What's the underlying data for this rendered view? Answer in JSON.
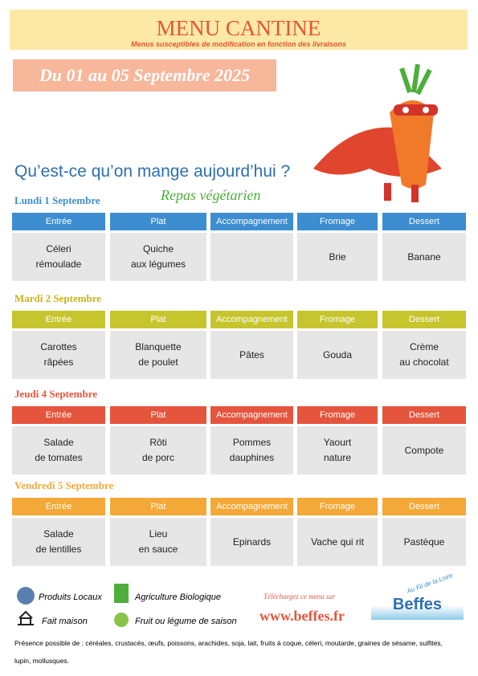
{
  "header": {
    "title": "MENU CANTINE",
    "subtitle": "Menus susceptibles de modification en fonction des livraisons",
    "dates": "Du 01 au 05 Septembre 2025"
  },
  "question": "Qu’est-ce qu’on mange aujourd’hui ?",
  "note": "Repas végétarien",
  "columns": [
    "Entrée",
    "Plat",
    "Accompagnement",
    "Fromage",
    "Dessert"
  ],
  "days": [
    {
      "label": "Lundi 1 Septembre",
      "color": "#3d8ed0",
      "label_color": "#3d8ed0",
      "cells": [
        "Céleri\nrémoulade",
        "Quiche\naux légumes",
        "",
        "Brie",
        "Banane"
      ]
    },
    {
      "label": "Mardi 2 Septembre",
      "color": "#c6c52e",
      "label_color": "#c9b21e",
      "cells": [
        "Carottes\nrâpées",
        "Blanquette\nde poulet",
        "Pâtes",
        "Gouda",
        "Crème\nau chocolat"
      ]
    },
    {
      "label": "Jeudi 4 Septembre",
      "color": "#e5553d",
      "label_color": "#e5553d",
      "cells": [
        "Salade\nde tomates",
        "Rôti\nde porc",
        "Pommes\ndauphines",
        "Yaourt\nnature",
        "Compote"
      ]
    },
    {
      "label": "Vendredi 5 Septembre",
      "color": "#f4a838",
      "label_color": "#f4a838",
      "cells": [
        "Salade\nde lentilles",
        "Lieu\nen sauce",
        "Epinards",
        "Vache qui rit",
        "Pastèque"
      ]
    }
  ],
  "legend": {
    "local": "Produits Locaux",
    "bio": "Agriculture Biologique",
    "homemade": "Fait maison",
    "season": "Fruit ou légume de saison"
  },
  "download": {
    "text": "Téléchargez ce menu sur",
    "url": "www.beffes.fr"
  },
  "logo": {
    "tagline": "Au Fil de la Loire",
    "name": "Beffes"
  },
  "allergens": "Présence possible de : céréales, crustacés, œufs, poissons, arachides, soja, lait, fruits à coque, céleri, moutarde, graines de sésame, sulfites, lupin, mollusques."
}
